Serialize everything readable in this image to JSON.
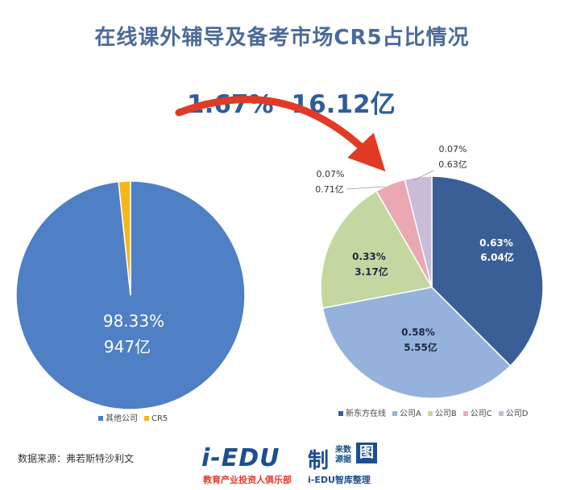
{
  "title": "在线课外辅导及备考市场CR5占比情况",
  "headline": {
    "share": "1.67%",
    "amount": "16.12亿"
  },
  "source_text": "数据来源：弗若斯特沙利文",
  "brand": {
    "main": "i-EDU",
    "zhi": "制",
    "small_top": "来数",
    "small_bottom": "源据",
    "tu": "图",
    "sub_left": "教育产业投资人俱乐部",
    "sub_right": "i-EDU智库整理"
  },
  "colors": {
    "other": "#4f7fc4",
    "cr5": "#f4b71b",
    "xdf": "#3a5f97",
    "a": "#94b2dc",
    "b": "#c4d7a0",
    "c": "#eaa9b2",
    "d": "#c9bcd9",
    "arrow": "#e23a25"
  },
  "chart_data": [
    {
      "type": "pie",
      "title": "",
      "slices": [
        {
          "label": "其他公司",
          "value": 98.33,
          "pct_label": "98.33%",
          "amount_label": "947亿"
        },
        {
          "label": "CR5",
          "value": 1.67,
          "pct_label": "",
          "amount_label": ""
        }
      ],
      "legend": [
        "其他公司",
        "CR5"
      ],
      "legend_position": "bottom"
    },
    {
      "type": "pie",
      "title": "",
      "slices": [
        {
          "label": "新东方在线",
          "value": 6.04,
          "pct_label": "0.63%",
          "amount_label": "6.04亿"
        },
        {
          "label": "公司A",
          "value": 5.55,
          "pct_label": "0.58%",
          "amount_label": "5.55亿"
        },
        {
          "label": "公司B",
          "value": 3.17,
          "pct_label": "0.33%",
          "amount_label": "3.17亿"
        },
        {
          "label": "公司C",
          "value": 0.71,
          "pct_label": "0.07%",
          "amount_label": "0.71亿"
        },
        {
          "label": "公司D",
          "value": 0.63,
          "pct_label": "0.07%",
          "amount_label": "0.63亿"
        }
      ],
      "legend": [
        "新东方在线",
        "公司A",
        "公司B",
        "公司C",
        "公司D"
      ],
      "legend_position": "bottom"
    }
  ]
}
